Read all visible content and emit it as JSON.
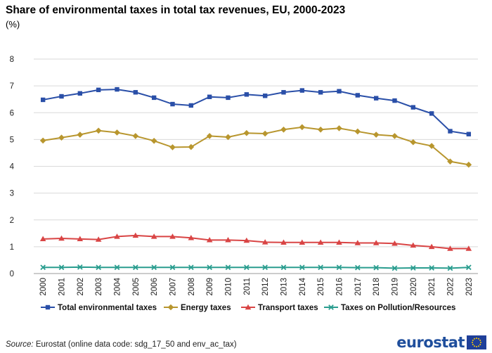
{
  "chart_data": {
    "type": "line",
    "title": "Share of environmental taxes in total tax revenues, EU, 2000-2023",
    "unit": "(%)",
    "xlabel": "",
    "ylabel": "",
    "ylim": [
      0,
      8
    ],
    "yticks": [
      0,
      1,
      2,
      3,
      4,
      5,
      6,
      7,
      8
    ],
    "grid": true,
    "legend": "bottom",
    "categories": [
      "2000",
      "2001",
      "2002",
      "2003",
      "2004",
      "2005",
      "2006",
      "2007",
      "2008",
      "2009",
      "2010",
      "2011",
      "2012",
      "2013",
      "2014",
      "2015",
      "2016",
      "2017",
      "2018",
      "2019",
      "2020",
      "2021",
      "2022",
      "2023"
    ],
    "series": [
      {
        "name": "Total environmental taxes",
        "color": "#2a4fa8",
        "marker": "square",
        "values": [
          6.48,
          6.61,
          6.72,
          6.85,
          6.87,
          6.76,
          6.56,
          6.32,
          6.27,
          6.59,
          6.56,
          6.68,
          6.63,
          6.76,
          6.83,
          6.76,
          6.8,
          6.65,
          6.54,
          6.45,
          6.2,
          5.97,
          5.31,
          5.2
        ]
      },
      {
        "name": "Energy taxes",
        "color": "#b8962e",
        "marker": "diamond",
        "values": [
          4.96,
          5.07,
          5.18,
          5.33,
          5.26,
          5.13,
          4.95,
          4.71,
          4.72,
          5.13,
          5.09,
          5.24,
          5.22,
          5.37,
          5.46,
          5.37,
          5.42,
          5.3,
          5.18,
          5.13,
          4.9,
          4.76,
          4.18,
          4.06
        ]
      },
      {
        "name": "Transport taxes",
        "color": "#d94545",
        "marker": "triangle",
        "values": [
          1.29,
          1.31,
          1.29,
          1.27,
          1.38,
          1.42,
          1.38,
          1.38,
          1.33,
          1.25,
          1.25,
          1.23,
          1.17,
          1.16,
          1.16,
          1.16,
          1.16,
          1.14,
          1.14,
          1.12,
          1.05,
          1.0,
          0.93,
          0.93
        ]
      },
      {
        "name": "Taxes on Pollution/Resources",
        "color": "#2a9d8f",
        "marker": "x",
        "values": [
          0.23,
          0.23,
          0.24,
          0.23,
          0.23,
          0.23,
          0.23,
          0.23,
          0.23,
          0.23,
          0.23,
          0.23,
          0.23,
          0.23,
          0.23,
          0.23,
          0.23,
          0.22,
          0.22,
          0.2,
          0.21,
          0.21,
          0.2,
          0.23
        ]
      }
    ]
  },
  "source": {
    "label": "Source:",
    "text": "Eurostat (online data code: sdg_17_50 and env_ac_tax)"
  },
  "logo": {
    "text": "eurostat"
  }
}
